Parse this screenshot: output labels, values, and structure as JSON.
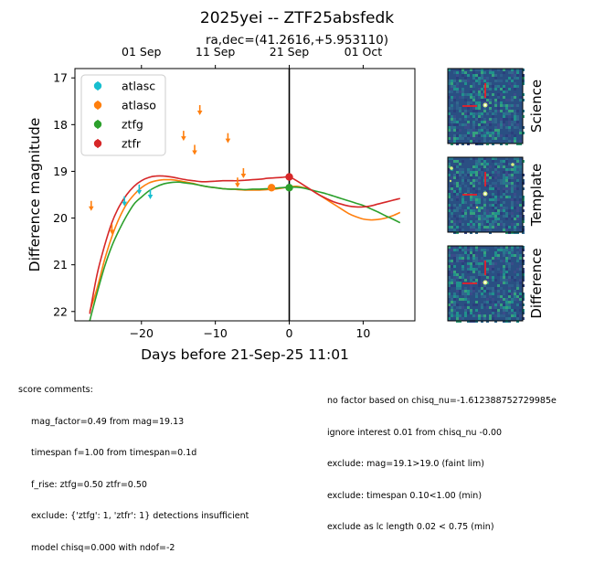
{
  "chart_data": {
    "type": "scatter",
    "title": "2025yei -- ZTF25absfedk",
    "subtitle": "ra,dec=(41.2616,+5.953110)",
    "xlabel": "Days before 21-Sep-25 11:01",
    "ylabel": "Difference magnitude",
    "xlim": [
      -29,
      17
    ],
    "ylim": [
      22.2,
      16.8
    ],
    "y_inverted": true,
    "xticks": [
      -20,
      -10,
      0,
      10
    ],
    "yticks": [
      17,
      18,
      19,
      20,
      21,
      22
    ],
    "top_axis_ticks": [
      {
        "x": -20,
        "label": "01 Sep"
      },
      {
        "x": -10,
        "label": "11 Sep"
      },
      {
        "x": 0,
        "label": "21 Sep"
      },
      {
        "x": 10,
        "label": "01 Oct"
      }
    ],
    "vline_x": 0,
    "legend_position": "upper-left",
    "series": [
      {
        "name": "atlasc",
        "color": "#17becf",
        "marker": "arrow-down",
        "points": [
          [
            -22.3,
            19.65
          ],
          [
            -20.3,
            19.4
          ],
          [
            -18.8,
            19.5
          ]
        ]
      },
      {
        "name": "atlaso",
        "color": "#ff7f0e",
        "marker": "arrow-down",
        "points": [
          [
            -26.8,
            19.75
          ],
          [
            -24.0,
            20.25
          ],
          [
            -14.3,
            18.25
          ],
          [
            -12.8,
            18.55
          ],
          [
            -12.1,
            17.7
          ],
          [
            -8.3,
            18.3
          ],
          [
            -7.0,
            19.25
          ],
          [
            -6.2,
            19.05
          ]
        ]
      },
      {
        "name": "atlaso",
        "color": "#ff7f0e",
        "marker": "circle",
        "points": [
          [
            -2.4,
            19.35
          ]
        ]
      },
      {
        "name": "ztfg",
        "color": "#2ca02c",
        "marker": "circle",
        "points": [
          [
            0,
            19.35
          ]
        ]
      },
      {
        "name": "ztfr",
        "color": "#d62728",
        "marker": "circle",
        "points": [
          [
            0,
            19.12
          ]
        ]
      }
    ],
    "fit_curves": [
      {
        "name": "atlaso",
        "color": "#ff7f0e",
        "x": [
          -27,
          -26,
          -25,
          -24,
          -23,
          -22,
          -21,
          -20,
          -19,
          -18,
          -17,
          -16,
          -15,
          -14,
          -13,
          -12,
          -11,
          -10,
          -9,
          -8,
          -7,
          -6,
          -5,
          -4,
          -3,
          -2,
          -1,
          0,
          1,
          2,
          3,
          4,
          5,
          6,
          7,
          8,
          9,
          10,
          11,
          12,
          13,
          14,
          15
        ],
        "y": [
          22.0,
          21.5,
          20.9,
          20.4,
          20.0,
          19.7,
          19.5,
          19.35,
          19.25,
          19.2,
          19.18,
          19.18,
          19.2,
          19.23,
          19.26,
          19.3,
          19.33,
          19.35,
          19.37,
          19.38,
          19.39,
          19.4,
          19.4,
          19.4,
          19.39,
          19.38,
          19.36,
          19.33,
          19.32,
          19.35,
          19.4,
          19.5,
          19.6,
          19.7,
          19.8,
          19.9,
          19.97,
          20.02,
          20.04,
          20.03,
          20.0,
          19.95,
          19.88
        ]
      },
      {
        "name": "ztfg",
        "color": "#2ca02c",
        "x": [
          -27,
          -26,
          -25,
          -24,
          -23,
          -22,
          -21,
          -20,
          -19,
          -18,
          -17,
          -16,
          -15,
          -14,
          -13,
          -12,
          -11,
          -10,
          -9,
          -8,
          -7,
          -6,
          -5,
          -4,
          -3,
          -2,
          -1,
          0,
          1,
          2,
          3,
          4,
          5,
          6,
          7,
          8,
          9,
          10,
          11,
          12,
          13,
          14,
          15
        ],
        "y": [
          22.2,
          21.6,
          21.05,
          20.6,
          20.25,
          19.95,
          19.7,
          19.55,
          19.42,
          19.33,
          19.27,
          19.24,
          19.23,
          19.25,
          19.27,
          19.3,
          19.33,
          19.35,
          19.37,
          19.38,
          19.38,
          19.39,
          19.38,
          19.38,
          19.37,
          19.36,
          19.35,
          19.34,
          19.34,
          19.36,
          19.4,
          19.44,
          19.48,
          19.53,
          19.58,
          19.63,
          19.68,
          19.73,
          19.8,
          19.87,
          19.95,
          20.02,
          20.1
        ]
      },
      {
        "name": "ztfr",
        "color": "#d62728",
        "x": [
          -27,
          -26,
          -25,
          -24,
          -23,
          -22,
          -21,
          -20,
          -19,
          -18,
          -17,
          -16,
          -15,
          -14,
          -13,
          -12,
          -11,
          -10,
          -9,
          -8,
          -7,
          -6,
          -5,
          -4,
          -3,
          -2,
          -1,
          0,
          1,
          2,
          3,
          4,
          5,
          6,
          7,
          8,
          9,
          10,
          11,
          12,
          13,
          14,
          15
        ],
        "y": [
          22.05,
          21.2,
          20.6,
          20.1,
          19.75,
          19.5,
          19.32,
          19.2,
          19.13,
          19.1,
          19.1,
          19.12,
          19.15,
          19.18,
          19.2,
          19.22,
          19.22,
          19.21,
          19.2,
          19.2,
          19.2,
          19.19,
          19.18,
          19.17,
          19.15,
          19.14,
          19.13,
          19.12,
          19.2,
          19.3,
          19.4,
          19.5,
          19.58,
          19.65,
          19.7,
          19.74,
          19.76,
          19.76,
          19.74,
          19.7,
          19.66,
          19.62,
          19.58
        ]
      }
    ]
  },
  "legend": [
    "atlasc",
    "atlaso",
    "ztfg",
    "ztfr"
  ],
  "thumbnails": [
    {
      "label": "Science"
    },
    {
      "label": "Template"
    },
    {
      "label": "Difference"
    }
  ],
  "colors": {
    "atlasc": "#17becf",
    "atlaso": "#ff7f0e",
    "ztfg": "#2ca02c",
    "ztfr": "#d62728",
    "marker_red": "#e8202a",
    "stamp_bg": "#2a4f83"
  },
  "comments_left": {
    "header": "score comments:",
    "lines": [
      "mag_factor=0.49 from mag=19.13",
      "timespan f=1.00 from timespan=0.1d",
      "f_rise: ztfg=0.50 ztfr=0.50",
      "exclude: {'ztfg': 1, 'ztfr': 1} detections insufficient",
      "model chisq=0.000 with ndof=-2"
    ]
  },
  "comments_right": {
    "lines": [
      "no factor based on chisq_nu=-1.612388752729985e",
      "ignore interest 0.01 from chisq_nu -0.00",
      "exclude: mag=19.1>19.0 (faint lim)",
      "exclude: timespan 0.10<1.00 (min)",
      "exclude as lc length 0.02 < 0.75 (min)"
    ]
  }
}
